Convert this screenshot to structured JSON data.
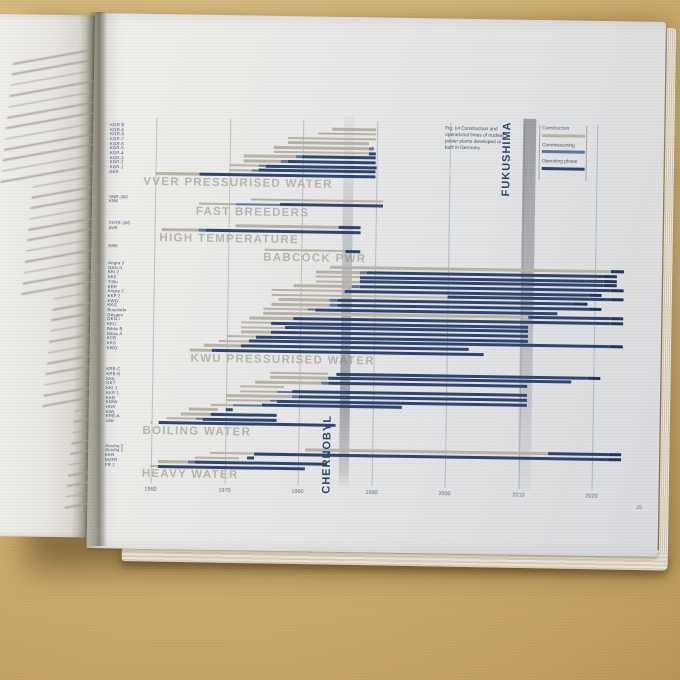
{
  "figure": {
    "caption_lines": [
      "Fig. 14 Construction and",
      "operational times of nuclear",
      "power plants developed or",
      "built in Germany"
    ],
    "page_number": "25"
  },
  "left_page": {
    "text_legible": false
  },
  "colors": {
    "construction": "#b7b3a6",
    "commissioning": "#5f74a0",
    "operating": "#2e4570",
    "operating_dark": "#22365c",
    "event_text": "#2e4570",
    "header_text": "#b5b2a6",
    "axis_text": "#6b7280",
    "row_label": "#3b4c72"
  },
  "chart_data": {
    "type": "gantt",
    "title": "Fig. 14 Construction and operational times of nuclear power plants developed or built in Germany",
    "x_ticks": [
      "1960",
      "1970",
      "1980",
      "1990",
      "2000",
      "2010",
      "2020"
    ],
    "x_min": 1957,
    "x_max": 2025,
    "legend": [
      "Construction",
      "Commissioning",
      "Operating phase"
    ],
    "events": [
      {
        "label": "CHERNOBYL",
        "year": 1986
      },
      {
        "label": "FUKUSHIMA",
        "year": 2011
      }
    ],
    "groups": [
      {
        "name": "VVER PRESSURISED WATER",
        "rows": [
          {
            "label": "KGR B",
            "c": [
              1984,
              1990
            ]
          },
          {
            "label": "KGR A",
            "c": [
              1982,
              1990
            ]
          },
          {
            "label": "KGR-8",
            "c": [
              1978,
              1990
            ]
          },
          {
            "label": "KGR-7",
            "c": [
              1978,
              1989
            ]
          },
          {
            "label": "KGR-6",
            "c": [
              1976,
              1989
            ],
            "m": [
              1989,
              1989.7
            ]
          },
          {
            "label": "KGR-5",
            "c": [
              1976,
              1989
            ],
            "o": [
              1989,
              1989.9
            ]
          },
          {
            "label": "KGR-4",
            "c": [
              1972,
              1979
            ],
            "m": [
              1979,
              1979.8
            ],
            "o": [
              1979.8,
              1990
            ]
          },
          {
            "label": "KGR-3",
            "c": [
              1972,
              1977
            ],
            "m": [
              1977,
              1978
            ],
            "o": [
              1978,
              1990
            ]
          },
          {
            "label": "KGR-2",
            "c": [
              1970,
              1974
            ],
            "m": [
              1974,
              1975
            ],
            "o": [
              1975,
              1990
            ]
          },
          {
            "label": "KGR-1",
            "c": [
              1970,
              1973
            ],
            "m": [
              1973,
              1974
            ],
            "o": [
              1974,
              1990
            ]
          },
          {
            "label": "KKR",
            "c": [
              1960,
              1966
            ],
            "o": [
              1966,
              1990
            ]
          }
        ]
      },
      {
        "name": "FAST BREEDERS",
        "rows": [
          {
            "label": "SNR-300",
            "c": [
              1973,
              1991
            ]
          },
          {
            "label": "KNK",
            "c": [
              1966,
              1971
            ],
            "m": [
              1971,
              1977
            ],
            "o": [
              1977,
              1991
            ]
          }
        ]
      },
      {
        "name": "HIGH TEMPERATURE",
        "rows": [
          {
            "label": "THTR-300",
            "c": [
              1971,
              1985
            ],
            "o": [
              1985,
              1988
            ]
          },
          {
            "label": "AVR",
            "c": [
              1961,
              1966
            ],
            "m": [
              1966,
              1967
            ],
            "o": [
              1967,
              1988
            ]
          }
        ]
      },
      {
        "name": "BABCOCK PWR",
        "rows": [
          {
            "label": "KMK",
            "c": [
              1975,
              1986
            ],
            "o": [
              1986,
              1988
            ]
          }
        ]
      },
      {
        "name": "KWU PRESSURISED WATER",
        "rows": [
          {
            "label": "Angra 3",
            "c": [
              1984,
              2024
            ],
            "arrow": true
          },
          {
            "label": "GKN-II",
            "c": [
              1982,
              1988
            ],
            "m": [
              1988,
              1989
            ],
            "o": [
              1989,
              2023
            ]
          },
          {
            "label": "KKI 2",
            "c": [
              1982,
              1988
            ],
            "o": [
              1988,
              2023
            ]
          },
          {
            "label": "KKE",
            "c": [
              1982,
              1988
            ],
            "o": [
              1988,
              2023
            ]
          },
          {
            "label": "Trillo",
            "c": [
              1979,
              1987
            ],
            "m": [
              1987,
              1988
            ],
            "o": [
              1988,
              2024
            ],
            "arrow": true
          },
          {
            "label": "KBR",
            "c": [
              1976,
              1986
            ],
            "o": [
              1986,
              2021
            ]
          },
          {
            "label": "Angra 2",
            "c": [
              1976,
              2000
            ],
            "o": [
              2000,
              2024
            ],
            "arrow": true
          },
          {
            "label": "KKP 2",
            "c": [
              1977,
              1984
            ],
            "m": [
              1984,
              1985
            ],
            "o": [
              1985,
              2019
            ]
          },
          {
            "label": "KWG",
            "c": [
              1976,
              1984
            ],
            "m": [
              1984,
              1985
            ],
            "o": [
              1985,
              2021
            ]
          },
          {
            "label": "KKG",
            "c": [
              1975,
              1981
            ],
            "m": [
              1981,
              1982
            ],
            "o": [
              1982,
              2015
            ]
          },
          {
            "label": "Buschehr",
            "c": [
              1975,
              2010
            ],
            "o": [
              2011,
              2024
            ],
            "arrow": true
          },
          {
            "label": "Gösgen",
            "c": [
              1973,
              1979
            ],
            "o": [
              1979,
              2024
            ],
            "arrow": true
          },
          {
            "label": "GKN-I",
            "c": [
              1972,
              1976
            ],
            "o": [
              1976,
              2011
            ]
          },
          {
            "label": "KKU",
            "c": [
              1972,
              1978
            ],
            "o": [
              1978,
              2011
            ]
          },
          {
            "label": "Biblis B",
            "c": [
              1972,
              1976
            ],
            "o": [
              1976,
              2011
            ]
          },
          {
            "label": "Biblis A",
            "c": [
              1970,
              1974
            ],
            "o": [
              1974,
              2011
            ]
          },
          {
            "label": "KCB",
            "c": [
              1969,
              1973
            ],
            "o": [
              1973,
              2024
            ],
            "arrow": true
          },
          {
            "label": "KKS",
            "c": [
              1967,
              1972
            ],
            "o": [
              1972,
              2003
            ]
          },
          {
            "label": "KWO",
            "c": [
              1965,
              1968
            ],
            "o": [
              1968,
              2005
            ]
          }
        ]
      },
      {
        "name": "BOILING WATER",
        "rows": [
          {
            "label": "KRB-C",
            "c": [
              1976,
              1984
            ],
            "o": [
              1985,
              2021
            ]
          },
          {
            "label": "KRB-B",
            "c": [
              1976,
              1984
            ],
            "o": [
              1984,
              2017
            ]
          },
          {
            "label": "KKK",
            "c": [
              1974,
              1983
            ],
            "m": [
              1983,
              1984
            ],
            "o": [
              1984,
              2011
            ]
          },
          {
            "label": "GKT",
            "c": [
              1972,
              1978
            ]
          },
          {
            "label": "KKI 1",
            "c": [
              1972,
              1977
            ],
            "m": [
              1977,
              1979
            ],
            "o": [
              1979,
              2011
            ]
          },
          {
            "label": "KKP 1",
            "c": [
              1970,
              1979
            ],
            "m": [
              1979,
              1980
            ],
            "o": [
              1980,
              2011
            ]
          },
          {
            "label": "KKB",
            "c": [
              1970,
              1976
            ],
            "m": [
              1976,
              1977
            ],
            "o": [
              1977,
              2011
            ]
          },
          {
            "label": "KWW",
            "c": [
              1968,
              1971
            ],
            "m": [
              1971,
              1975
            ],
            "o": [
              1975,
              1994
            ]
          },
          {
            "label": "HDR",
            "c": [
              1965,
              1969
            ],
            "o": [
              1970,
              1971
            ]
          },
          {
            "label": "KWL",
            "c": [
              1964,
              1968
            ],
            "o": [
              1968,
              1977
            ]
          },
          {
            "label": "KRB-A",
            "c": [
              1962,
              1966
            ],
            "m": [
              1966,
              1967
            ],
            "o": [
              1967,
              1977
            ]
          },
          {
            "label": "VAK",
            "c": [
              1958,
              1960
            ],
            "o": [
              1961,
              1985
            ]
          }
        ]
      },
      {
        "name": "HEAVY WATER",
        "rows": [
          {
            "label": "Atucha 2",
            "c": [
              1981,
              2014
            ],
            "o": [
              2014,
              2024
            ],
            "arrow": true
          },
          {
            "label": "Atucha 1",
            "c": [
              1968,
              1974
            ],
            "o": [
              1974,
              2024
            ],
            "arrow": true
          },
          {
            "label": "KKN",
            "c": [
              1966,
              1972
            ],
            "o": [
              1973,
              1974
            ]
          },
          {
            "label": "MZFR",
            "c": [
              1961,
              1965
            ],
            "m": [
              1965,
              1966
            ],
            "o": [
              1966,
              1984
            ]
          },
          {
            "label": "FR 2",
            "c": [
              1957,
              1961
            ],
            "o": [
              1961,
              1981
            ]
          }
        ]
      }
    ]
  }
}
